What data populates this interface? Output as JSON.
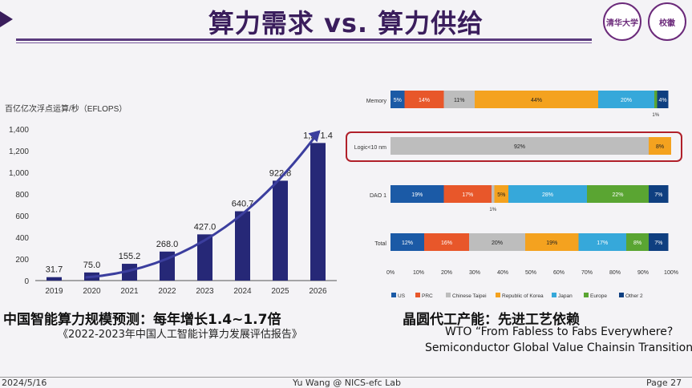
{
  "slide": {
    "title": "算力需求 vs. 算力供给",
    "logo1_text": "清华大学",
    "logo2_text": "校徽"
  },
  "left": {
    "caption": "中国智能算力规模预测：每年增长1.4~1.7倍",
    "source": "《2022-2023年中国人工智能计算力发展评估报告》"
  },
  "right": {
    "caption": "晶圆代工产能：先进工艺依赖",
    "source_line1": "WTO “From Fabless to Fabs Everywhere?",
    "source_line2": "Semiconductor Global Value Chainsin Transition”"
  },
  "footer": {
    "date": "2024/5/16",
    "center": "Yu Wang @ NICS-efc Lab",
    "page": "Page 27"
  },
  "colors": {
    "bar": "#262877",
    "arrow": "#3b3e9e",
    "highlight": "#b0202a",
    "US": "#1b5aa6",
    "PRC": "#e8572a",
    "ChineseTaipei": "#bdbdbd",
    "Korea": "#f4a21f",
    "Japan": "#36a8da",
    "Europe": "#5aa532",
    "Other2": "#0f3f80"
  },
  "chart_data": [
    {
      "type": "bar",
      "ylabel": "百亿亿次浮点运算/秒（EFLOPS）",
      "categories": [
        "2019",
        "2020",
        "2021",
        "2022",
        "2023",
        "2024",
        "2025",
        "2026"
      ],
      "values": [
        31.7,
        75.0,
        155.2,
        268.0,
        427.0,
        640.7,
        922.8,
        1271.4
      ],
      "value_labels": [
        "31.7",
        "75.0",
        "155.2",
        "268.0",
        "427.0",
        "640.7",
        "922.8",
        "1,271.4"
      ],
      "ylim": [
        0,
        1400
      ],
      "yticks": [
        0,
        200,
        400,
        600,
        800,
        1000,
        1200,
        1400
      ],
      "ytick_labels": [
        "0",
        "200",
        "400",
        "600",
        "800",
        "1,000",
        "1,200",
        "1,400"
      ],
      "grid": false
    },
    {
      "type": "bar",
      "orientation": "horizontal-stacked-percent",
      "categories": [
        "Memory",
        "Logic<10 nm",
        "DAO 1",
        "Total"
      ],
      "xlim": [
        0,
        100
      ],
      "xticks": [
        "0%",
        "10%",
        "20%",
        "30%",
        "40%",
        "50%",
        "60%",
        "70%",
        "80%",
        "90%",
        "100%"
      ],
      "series": [
        {
          "name": "US",
          "values": [
            5,
            0,
            19,
            12
          ],
          "labels": [
            "5%",
            "",
            "19%",
            "12%"
          ]
        },
        {
          "name": "PRC",
          "values": [
            14,
            0,
            17,
            16
          ],
          "labels": [
            "14%",
            "",
            "17%",
            "16%"
          ]
        },
        {
          "name": "Chinese Taipei",
          "values": [
            11,
            92,
            1,
            20
          ],
          "labels": [
            "11%",
            "92%",
            "1%",
            "20%"
          ]
        },
        {
          "name": "Republic of Korea",
          "values": [
            44,
            8,
            5,
            19
          ],
          "labels": [
            "44%",
            "8%",
            "5%",
            "19%"
          ]
        },
        {
          "name": "Japan",
          "values": [
            20,
            0,
            28,
            17
          ],
          "labels": [
            "20%",
            "",
            "28%",
            "17%"
          ]
        },
        {
          "name": "Europe",
          "values": [
            1,
            0,
            22,
            8
          ],
          "labels": [
            "1%",
            "",
            "22%",
            "8%"
          ]
        },
        {
          "name": "Other 2",
          "values": [
            4,
            0,
            7,
            7
          ],
          "labels": [
            "4%",
            "",
            "7%",
            "7%"
          ]
        }
      ],
      "legend": "bottom"
    }
  ]
}
